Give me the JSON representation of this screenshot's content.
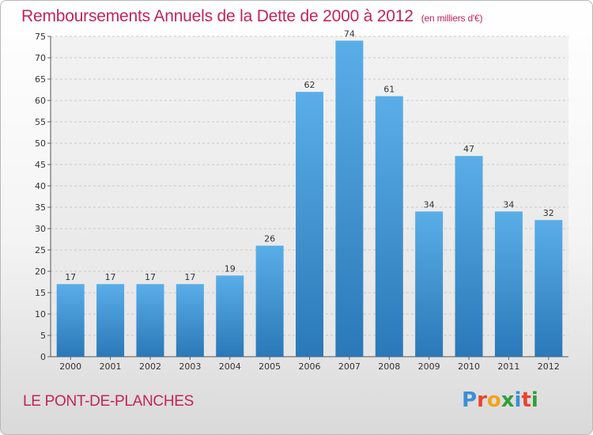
{
  "chart_data": {
    "type": "bar",
    "title": "Remboursements Annuels de la Dette de 2000 à 2012",
    "subtitle": "(en milliers d'€)",
    "categories": [
      "2000",
      "2001",
      "2002",
      "2003",
      "2004",
      "2005",
      "2006",
      "2007",
      "2008",
      "2009",
      "2010",
      "2011",
      "2012"
    ],
    "values": [
      17,
      17,
      17,
      17,
      19,
      26,
      62,
      74,
      61,
      34,
      47,
      34,
      32
    ],
    "ylim": [
      0,
      75
    ],
    "yticks": [
      0,
      5,
      10,
      15,
      20,
      25,
      30,
      35,
      40,
      45,
      50,
      55,
      60,
      65,
      70,
      75
    ],
    "grid": true,
    "bar_color_top": "#5aaee8",
    "bar_color_bottom": "#2a78b8"
  },
  "footer": {
    "place": "LE PONT-DE-PLANCHES",
    "logo": "Proxiti"
  }
}
